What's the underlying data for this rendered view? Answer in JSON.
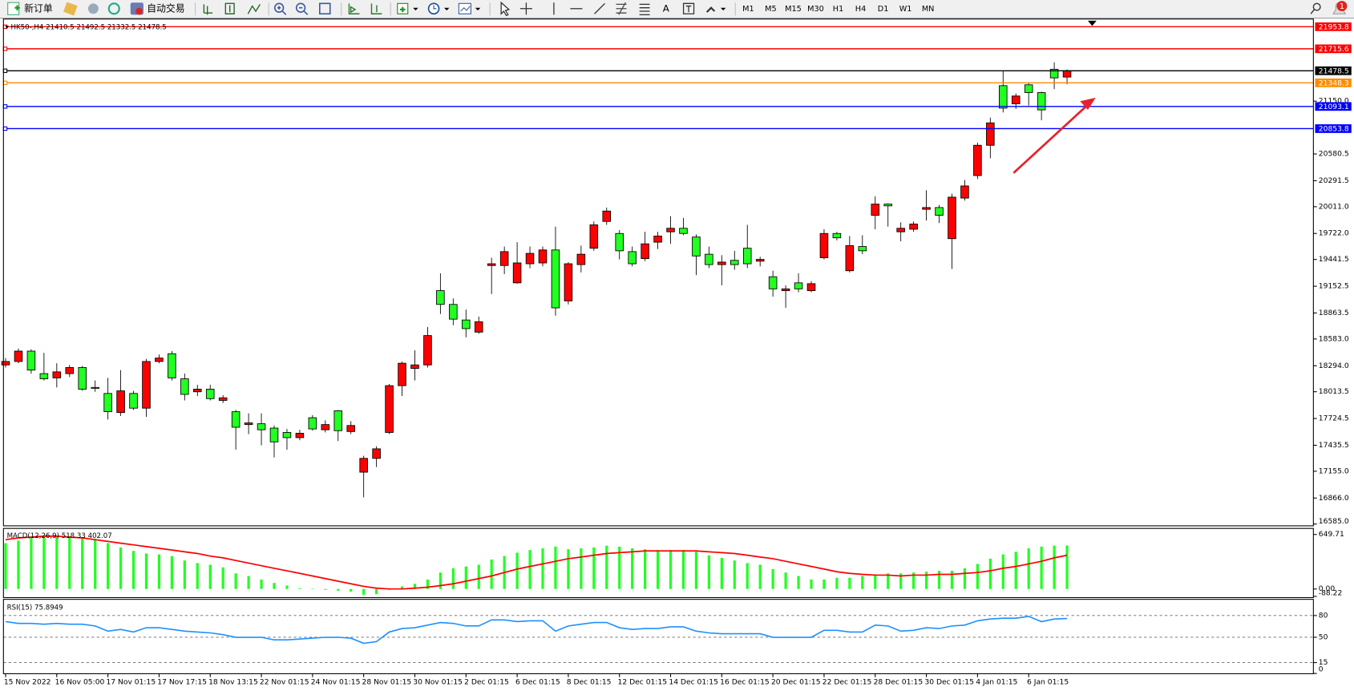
{
  "toolbar": {
    "new_order": "新订单",
    "auto_trading": "自动交易",
    "text_tool": "A",
    "timeframes": [
      "M1",
      "M5",
      "M15",
      "M30",
      "H1",
      "H4",
      "D1",
      "W1",
      "MN"
    ],
    "notifications": 1
  },
  "chart_data": [
    {
      "type": "candlestick",
      "symbol": "HK50-,H4",
      "up_color": "#ff0000",
      "down_color": "#22ff22",
      "categories": [
        "15 Nov 2022",
        null,
        null,
        null,
        "16 Nov 05:00",
        null,
        null,
        null,
        "17 Nov 01:15",
        null,
        null,
        null,
        "17 Nov 17:15",
        null,
        null,
        null,
        "18 Nov 13:15",
        null,
        null,
        null,
        "22 Nov 01:15",
        null,
        null,
        null,
        "24 Nov 01:15",
        null,
        null,
        null,
        "28 Nov 01:15",
        null,
        null,
        null,
        "30 Nov 01:15",
        null,
        null,
        null,
        "2 Dec 01:15",
        null,
        null,
        null,
        "6 Dec 01:15",
        null,
        null,
        null,
        "8 Dec 01:15",
        null,
        null,
        null,
        "12 Dec 01:15",
        null,
        null,
        null,
        "14 Dec 01:15",
        null,
        null,
        null,
        "16 Dec 01:15",
        null,
        null,
        null,
        "20 Dec 01:15",
        null,
        null,
        null,
        "22 Dec 01:15",
        null,
        null,
        null,
        "28 Dec 01:15",
        null,
        null,
        null,
        "30 Dec 01:15",
        null,
        null,
        null,
        "4 Jan 01:15",
        null,
        null,
        null,
        "6 Jan 01:15",
        null,
        null,
        null
      ],
      "ohlc": [
        [
          18303,
          18377,
          18275,
          18340
        ],
        [
          18340,
          18480,
          18321,
          18452
        ],
        [
          18452,
          18471,
          18209,
          18247
        ],
        [
          18209,
          18433,
          18135,
          18153
        ],
        [
          18163,
          18321,
          18060,
          18228
        ],
        [
          18209,
          18303,
          18172,
          18275
        ],
        [
          18275,
          18293,
          18023,
          18041
        ],
        [
          18060,
          18135,
          18013,
          18051
        ],
        [
          17995,
          18163,
          17714,
          17798
        ],
        [
          17789,
          18247,
          17752,
          18023
        ],
        [
          17995,
          18023,
          17817,
          17836
        ],
        [
          17836,
          18368,
          17742,
          18340
        ],
        [
          18340,
          18415,
          18321,
          18377
        ],
        [
          18424,
          18452,
          18135,
          18163
        ],
        [
          18153,
          18209,
          17920,
          17985
        ],
        [
          18013,
          18088,
          17967,
          18041
        ],
        [
          18041,
          18088,
          17920,
          17939
        ],
        [
          17920,
          17976,
          17892,
          17948
        ],
        [
          17798,
          17817,
          17388,
          17630
        ],
        [
          17659,
          17780,
          17556,
          17677
        ],
        [
          17668,
          17780,
          17435,
          17603
        ],
        [
          17621,
          17649,
          17304,
          17472
        ],
        [
          17574,
          17612,
          17388,
          17518
        ],
        [
          17518,
          17603,
          17490,
          17565
        ],
        [
          17733,
          17761,
          17593,
          17612
        ],
        [
          17603,
          17705,
          17574,
          17659
        ],
        [
          17808,
          17817,
          17481,
          17593
        ],
        [
          17584,
          17696,
          17556,
          17649
        ],
        [
          17145,
          17322,
          16874,
          17294
        ],
        [
          17294,
          17425,
          17201,
          17397
        ],
        [
          17574,
          18097,
          17556,
          18079
        ],
        [
          18079,
          18340,
          17967,
          18321
        ],
        [
          18265,
          18461,
          18135,
          18303
        ],
        [
          18303,
          18713,
          18275,
          18620
        ],
        [
          19105,
          19292,
          18853,
          18956
        ],
        [
          18956,
          19021,
          18732,
          18797
        ],
        [
          18788,
          18900,
          18601,
          18695
        ],
        [
          18657,
          18825,
          18639,
          18769
        ],
        [
          19376,
          19460,
          19068,
          19395
        ],
        [
          19376,
          19581,
          19283,
          19526
        ],
        [
          19189,
          19628,
          19180,
          19404
        ],
        [
          19395,
          19581,
          19348,
          19507
        ],
        [
          19404,
          19581,
          19367,
          19544
        ],
        [
          19544,
          19796,
          18835,
          18919
        ],
        [
          18994,
          19413,
          18956,
          19395
        ],
        [
          19386,
          19591,
          19301,
          19498
        ],
        [
          19563,
          19852,
          19535,
          19815
        ],
        [
          19852,
          20002,
          19815,
          19964
        ],
        [
          19722,
          19759,
          19442,
          19535
        ],
        [
          19526,
          19581,
          19367,
          19395
        ],
        [
          19451,
          19740,
          19423,
          19610
        ],
        [
          19628,
          19740,
          19554,
          19694
        ],
        [
          19740,
          19908,
          19610,
          19778
        ],
        [
          19778,
          19890,
          19703,
          19722
        ],
        [
          19684,
          19712,
          19273,
          19479
        ],
        [
          19498,
          19581,
          19348,
          19386
        ],
        [
          19386,
          19488,
          19162,
          19413
        ],
        [
          19432,
          19535,
          19330,
          19386
        ],
        [
          19563,
          19815,
          19348,
          19395
        ],
        [
          19423,
          19470,
          19367,
          19442
        ],
        [
          19255,
          19320,
          19040,
          19124
        ],
        [
          19105,
          19162,
          18919,
          19124
        ],
        [
          19189,
          19292,
          19087,
          19124
        ],
        [
          19105,
          19208,
          19087,
          19180
        ],
        [
          19460,
          19768,
          19442,
          19722
        ],
        [
          19722,
          19740,
          19647,
          19675
        ],
        [
          19320,
          19694,
          19301,
          19591
        ],
        [
          19581,
          19703,
          19498,
          19535
        ],
        [
          19918,
          20123,
          19768,
          20039
        ],
        [
          20039,
          20048,
          19796,
          20020
        ],
        [
          19740,
          19843,
          19638,
          19778
        ],
        [
          19768,
          19852,
          19740,
          19824
        ],
        [
          19983,
          20188,
          19861,
          20002
        ],
        [
          20002,
          20030,
          19834,
          19918
        ],
        [
          19666,
          20151,
          19339,
          20114
        ],
        [
          20104,
          20300,
          20077,
          20235
        ],
        [
          20347,
          20702,
          20310,
          20674
        ],
        [
          20674,
          20972,
          20534,
          20916
        ],
        [
          21318,
          21477,
          21028,
          21075
        ],
        [
          21122,
          21234,
          21066,
          21206
        ],
        [
          21327,
          21355,
          21103,
          21243
        ],
        [
          21243,
          21253,
          20944,
          21056
        ],
        [
          21495,
          21570,
          21280,
          21402
        ],
        [
          21410.5,
          21492.5,
          21332.5,
          21478.5
        ]
      ],
      "ylim": [
        16566,
        22037
      ],
      "yticks": [
        {
          "value": 21150,
          "label": "21150.0"
        },
        20580.5,
        20291.5,
        {
          "value": 20011,
          "label": "20011.0"
        },
        {
          "value": 19722,
          "label": "19722.0"
        },
        19441.5,
        19152.5,
        18863.5,
        {
          "value": 18583,
          "label": "18583.0"
        },
        {
          "value": 18294,
          "label": "18294.0"
        },
        18013.5,
        17724.5,
        17435.5,
        {
          "value": 17155,
          "label": "17155.0"
        },
        {
          "value": 16866,
          "label": "16866.0"
        },
        {
          "value": 16585,
          "label": "16585.0"
        }
      ],
      "hlines": [
        {
          "value": 21953.8,
          "color": "#ff0000"
        },
        {
          "value": 21715.6,
          "color": "#ff0000"
        },
        {
          "value": 21478.5,
          "color": "#000000"
        },
        {
          "value": 21348.3,
          "color": "#ff8c00"
        },
        {
          "value": 21093.1,
          "color": "#0000ff"
        },
        {
          "value": 20853.8,
          "color": "#0000ff"
        }
      ]
    },
    {
      "type": "macd",
      "name": "MACD(12,26,9)",
      "histogram": {
        "color": "#22ff22",
        "values": [
          546,
          577,
          608,
          619,
          629,
          629,
          619,
          598,
          546,
          495,
          454,
          423,
          412,
          392,
          340,
          309,
          289,
          258,
          186,
          155,
          113,
          72,
          41,
          10,
          3,
          -10,
          -21,
          -31,
          -72,
          -62,
          -10,
          31,
          62,
          113,
          196,
          247,
          268,
          289,
          351,
          392,
          433,
          464,
          485,
          505,
          474,
          485,
          495,
          516,
          505,
          485,
          474,
          464,
          464,
          464,
          443,
          402,
          371,
          340,
          309,
          289,
          237,
          196,
          155,
          113,
          113,
          134,
          134,
          155,
          175,
          186,
          186,
          196,
          206,
          217,
          217,
          247,
          299,
          361,
          412,
          443,
          485,
          505,
          516,
          518.33
        ]
      },
      "signal": {
        "color": "#ff0000",
        "values": [
          588,
          608,
          619,
          629,
          629,
          619,
          608,
          588,
          567,
          546,
          526,
          505,
          485,
          464,
          443,
          423,
          392,
          371,
          340,
          309,
          278,
          247,
          217,
          186,
          155,
          124,
          93,
          62,
          31,
          10,
          0,
          0,
          10,
          21,
          41,
          62,
          93,
          124,
          155,
          196,
          237,
          268,
          299,
          330,
          361,
          381,
          402,
          423,
          433,
          443,
          454,
          454,
          454,
          454,
          454,
          443,
          433,
          423,
          402,
          381,
          361,
          330,
          299,
          268,
          237,
          206,
          186,
          175,
          165,
          165,
          155,
          165,
          165,
          175,
          175,
          186,
          196,
          217,
          247,
          268,
          299,
          330,
          371,
          402.07
        ]
      },
      "ylim": [
        -88.22,
        649.71
      ],
      "yticks": [
        649.71,
        {
          "value": 0,
          "label": "0.00"
        },
        -88.22
      ]
    },
    {
      "type": "line",
      "name": "RSI(15)",
      "color": "#1e90ff",
      "values": [
        71.6,
        69.2,
        69.2,
        68.0,
        69.2,
        68.0,
        68.0,
        65.6,
        58.4,
        60.8,
        57.2,
        63.2,
        63.2,
        60.8,
        58.4,
        57.2,
        56.0,
        53.6,
        50.0,
        50.0,
        50.0,
        46.4,
        46.4,
        47.6,
        48.8,
        50.0,
        50.0,
        48.8,
        41.6,
        44.0,
        57.2,
        62.0,
        63.2,
        66.8,
        70.4,
        69.2,
        65.6,
        65.6,
        74.0,
        74.0,
        71.6,
        72.8,
        72.8,
        58.4,
        65.6,
        68.0,
        70.4,
        70.4,
        63.2,
        60.8,
        62.0,
        62.0,
        64.4,
        64.4,
        58.4,
        56.0,
        54.8,
        54.8,
        54.8,
        54.8,
        50.0,
        50.0,
        50.0,
        50.0,
        59.6,
        59.6,
        57.2,
        57.2,
        66.8,
        65.6,
        58.4,
        59.6,
        63.2,
        62.0,
        65.6,
        66.8,
        72.8,
        75.2,
        76.4,
        76.4,
        78.8,
        71.6,
        75.2,
        75.8949
      ],
      "ylim": [
        0,
        100
      ],
      "yticks": [
        80,
        50,
        15,
        0
      ],
      "levels": [
        80,
        50,
        15
      ]
    }
  ]
}
